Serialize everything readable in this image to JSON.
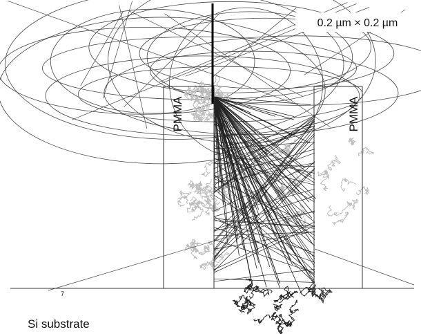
{
  "scale_label": "0.2 µm × 0.2 µm",
  "labels": {
    "left_resist": "PMMA",
    "right_resist": "PMMA",
    "substrate": "Si substrate",
    "mark": "7"
  }
}
